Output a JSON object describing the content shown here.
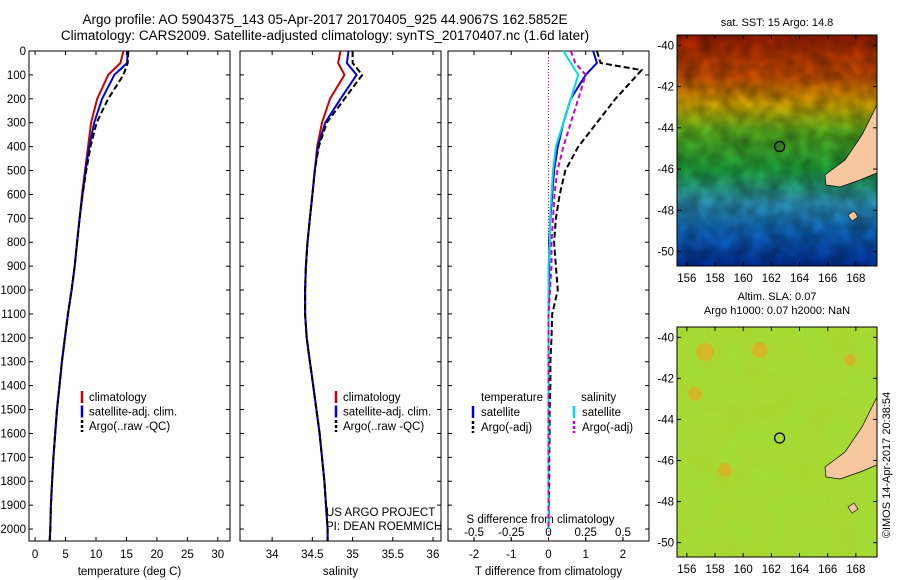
{
  "header": {
    "line1": "Argo profile: AO 5904375_143 05-Apr-2017 20170405_925 44.9067S 162.5852E",
    "line2": "Climatology: CARS2009. Satellite-adjusted climatology: synTS_20170407.nc (1.6d later)"
  },
  "credit": {
    "project": "US ARGO PROJECT",
    "pi": "PI: DEAN ROEMMICH",
    "stamp": "©IMOS 14-Apr-2017 20:38:54"
  },
  "maps": {
    "sst_title": "sat. SST: 15 Argo: 14.8",
    "sla_title1": "Altim. SLA: 0.07",
    "sla_title2": "Argo h1000: 0.07 h2000: NaN",
    "lat_ticks": [
      -40,
      -42,
      -44,
      -46,
      -48,
      -50
    ],
    "lon_ticks": [
      156,
      158,
      160,
      162,
      164,
      166,
      168
    ],
    "lat_range": [
      -39.5,
      -50.7
    ],
    "lon_range": [
      155.3,
      169.5
    ],
    "float_position": {
      "lat": -44.9067,
      "lon": 162.5852
    }
  },
  "colors": {
    "climatology": "#cc0000",
    "satellite": "#0000dd",
    "argo": "#000000",
    "sal_satellite": "#00dddd",
    "sal_argo": "#cc00cc",
    "land": "#f7c8a0"
  },
  "chart_data": [
    {
      "type": "line",
      "xlabel": "temperature (deg C)",
      "ylim": [
        2050,
        0
      ],
      "xlim": [
        -1,
        32
      ],
      "xticks": [
        0,
        5,
        10,
        15,
        20,
        25,
        30
      ],
      "yticks": [
        0,
        100,
        200,
        300,
        400,
        500,
        600,
        700,
        800,
        900,
        1000,
        1100,
        1200,
        1300,
        1400,
        1500,
        1600,
        1700,
        1800,
        1900,
        2000
      ],
      "series": [
        {
          "name": "climatology",
          "x": [
            14.5,
            14.0,
            12.0,
            10.2,
            9.2,
            8.7,
            8.2,
            7.7,
            7.3,
            6.9,
            6.5,
            6.0,
            5.4,
            4.9,
            4.4,
            4.0,
            3.6,
            3.3,
            3.0,
            2.8,
            2.6,
            2.5,
            2.4
          ],
          "y": [
            0,
            50,
            100,
            200,
            300,
            400,
            500,
            600,
            700,
            800,
            900,
            1000,
            1100,
            1200,
            1300,
            1400,
            1500,
            1600,
            1700,
            1800,
            1900,
            2000,
            2050
          ]
        },
        {
          "name": "satellite-adj. clim.",
          "x": [
            15.2,
            15.1,
            13.0,
            11.0,
            9.7,
            8.9,
            8.3,
            7.8,
            7.3,
            6.9,
            6.5,
            6.0,
            5.4,
            4.9,
            4.4,
            4.0,
            3.6,
            3.3,
            3.0,
            2.8,
            2.6,
            2.5,
            2.4
          ],
          "y": [
            0,
            50,
            100,
            200,
            300,
            400,
            500,
            600,
            700,
            800,
            900,
            1000,
            1100,
            1200,
            1300,
            1400,
            1500,
            1600,
            1700,
            1800,
            1900,
            2000,
            2050
          ]
        },
        {
          "name": "Argo(..raw -QC)",
          "x": [
            15.3,
            15.2,
            14.5,
            12.0,
            10.1,
            9.1,
            8.4,
            7.8,
            7.3,
            6.9,
            6.5,
            6.0,
            5.4,
            4.9,
            4.4,
            4.0,
            3.6,
            3.3,
            3.0,
            2.8,
            2.6,
            2.5,
            2.4
          ],
          "y": [
            0,
            50,
            100,
            200,
            300,
            400,
            500,
            600,
            700,
            800,
            900,
            1000,
            1100,
            1200,
            1300,
            1400,
            1500,
            1600,
            1700,
            1800,
            1900,
            2000,
            2050
          ]
        }
      ]
    },
    {
      "type": "line",
      "xlabel": "salinity",
      "ylim": [
        2050,
        0
      ],
      "xlim": [
        33.6,
        36.1
      ],
      "xticks": [
        34,
        34.5,
        35,
        35.5,
        36
      ],
      "tick_labels": [
        "34",
        "34.5",
        "35",
        "35.5",
        "36"
      ],
      "series": [
        {
          "name": "climatology",
          "x": [
            34.85,
            34.82,
            34.9,
            34.72,
            34.62,
            34.56,
            34.53,
            34.5,
            34.47,
            34.44,
            34.42,
            34.41,
            34.41,
            34.43,
            34.47,
            34.51,
            34.55,
            34.59,
            34.62,
            34.65,
            34.67,
            34.69,
            34.69
          ],
          "y": [
            0,
            50,
            100,
            200,
            300,
            400,
            500,
            600,
            700,
            800,
            900,
            1000,
            1100,
            1200,
            1300,
            1400,
            1500,
            1600,
            1700,
            1800,
            1900,
            2000,
            2050
          ]
        },
        {
          "name": "satellite-adj. clim.",
          "x": [
            34.95,
            34.93,
            35.05,
            34.85,
            34.66,
            34.57,
            34.53,
            34.5,
            34.47,
            34.44,
            34.42,
            34.41,
            34.41,
            34.43,
            34.47,
            34.51,
            34.55,
            34.59,
            34.62,
            34.65,
            34.67,
            34.69,
            34.69
          ],
          "y": [
            0,
            50,
            100,
            200,
            300,
            400,
            500,
            600,
            700,
            800,
            900,
            1000,
            1100,
            1200,
            1300,
            1400,
            1500,
            1600,
            1700,
            1800,
            1900,
            2000,
            2050
          ]
        },
        {
          "name": "Argo(..raw -QC)",
          "x": [
            35.0,
            35.0,
            35.12,
            34.9,
            34.68,
            34.58,
            34.53,
            34.5,
            34.47,
            34.44,
            34.42,
            34.41,
            34.41,
            34.43,
            34.47,
            34.51,
            34.55,
            34.59,
            34.62,
            34.65,
            34.67,
            34.69,
            34.69
          ],
          "y": [
            0,
            50,
            100,
            200,
            300,
            400,
            500,
            600,
            700,
            800,
            900,
            1000,
            1100,
            1200,
            1300,
            1400,
            1500,
            1600,
            1700,
            1800,
            1900,
            2000,
            2050
          ]
        }
      ]
    },
    {
      "type": "line",
      "xlabel": "T difference from climatology",
      "top_label": "S difference from climatology",
      "ylim": [
        2050,
        0
      ],
      "xlim": [
        -2.7,
        2.7
      ],
      "xticks": [
        -2,
        -1,
        0,
        1,
        2
      ],
      "top_ticks": [
        -0.5,
        -0.25,
        0,
        0.25,
        0.5
      ],
      "top_tick_labels": [
        "-0.5",
        "-0.25",
        "0",
        "0.25",
        "0.5"
      ],
      "legend": {
        "temperature": "temperature",
        "salinity": "salinity",
        "satellite": "satellite",
        "argo_adj": "Argo(-adj)"
      },
      "series": [
        {
          "name": "temperature satellite",
          "x": [
            1.2,
            1.3,
            1.0,
            0.6,
            0.4,
            0.25,
            0.15,
            0.1,
            0.05,
            0.02,
            0.02,
            0.02,
            0.0,
            0.0,
            0.0,
            0.0,
            0.0,
            0.0,
            0.0,
            0.0,
            0.0
          ],
          "y": [
            0,
            50,
            100,
            200,
            300,
            400,
            500,
            600,
            700,
            800,
            900,
            1000,
            1100,
            1200,
            1300,
            1400,
            1500,
            1600,
            1700,
            1800,
            2000
          ]
        },
        {
          "name": "temperature Argo(-adj)",
          "x": [
            1.3,
            1.4,
            2.5,
            1.8,
            1.3,
            0.8,
            0.45,
            0.3,
            0.2,
            0.15,
            0.2,
            0.25,
            0.1,
            0.08,
            0.05,
            0.05,
            0.03,
            0.03,
            0.02,
            0.02,
            0.0
          ],
          "y": [
            0,
            50,
            80,
            200,
            300,
            400,
            500,
            600,
            700,
            800,
            900,
            1000,
            1100,
            1200,
            1300,
            1400,
            1500,
            1600,
            1700,
            1800,
            2000
          ]
        },
        {
          "name": "salinity satellite",
          "x": [
            0.1,
            0.15,
            0.2,
            0.15,
            0.1,
            0.05,
            0.03,
            0.02,
            0.01,
            0.01,
            0.0,
            0.0,
            0.0,
            0.0,
            0.0,
            0.0,
            0.0,
            0.0,
            0.0,
            0.0,
            0.0
          ],
          "y": [
            0,
            50,
            100,
            200,
            300,
            400,
            500,
            600,
            700,
            800,
            900,
            1000,
            1100,
            1200,
            1300,
            1400,
            1500,
            1600,
            1700,
            1800,
            2000
          ]
        },
        {
          "name": "salinity Argo(-adj)",
          "x": [
            0.15,
            0.18,
            0.25,
            0.2,
            0.15,
            0.1,
            0.06,
            0.04,
            0.03,
            0.02,
            0.02,
            0.01,
            0.0,
            0.0,
            0.0,
            0.0,
            0.0,
            0.0,
            0.0,
            0.0,
            0.0
          ],
          "y": [
            0,
            50,
            100,
            200,
            300,
            400,
            500,
            600,
            700,
            800,
            900,
            1000,
            1100,
            1200,
            1300,
            1400,
            1500,
            1600,
            1700,
            1800,
            2000
          ]
        }
      ]
    }
  ]
}
